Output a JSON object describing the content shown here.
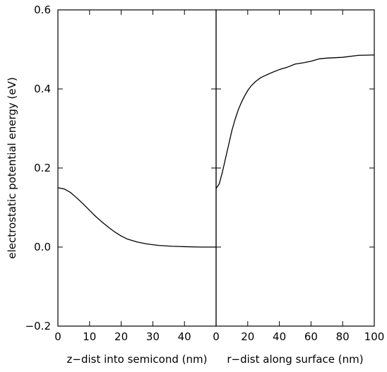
{
  "chart_data": [
    {
      "type": "line",
      "panel": "left",
      "title": "",
      "xlabel": "z−dist into semicond (nm)",
      "ylabel": "electrostatic potential energy (eV)",
      "xlim": [
        0,
        50
      ],
      "ylim": [
        -0.2,
        0.6
      ],
      "xticks": [
        "0",
        "10",
        "20",
        "30",
        "40"
      ],
      "yticks": [
        "−0.2",
        "0.0",
        "0.2",
        "0.4",
        "0.6"
      ],
      "ytick_values": [
        -0.2,
        0.0,
        0.2,
        0.4,
        0.6
      ],
      "xtick_values": [
        0,
        10,
        20,
        30,
        40
      ],
      "grid": false,
      "series": [
        {
          "x": [
            0,
            2,
            4,
            6,
            8,
            10,
            12,
            14,
            16,
            18,
            20,
            22,
            25,
            28,
            32,
            36,
            40,
            45,
            50
          ],
          "y": [
            0.15,
            0.147,
            0.138,
            0.124,
            0.109,
            0.093,
            0.077,
            0.063,
            0.05,
            0.038,
            0.028,
            0.02,
            0.013,
            0.008,
            0.004,
            0.002,
            0.001,
            0.0,
            0.0
          ]
        }
      ]
    },
    {
      "type": "line",
      "panel": "right",
      "title": "",
      "xlabel": "r−dist along surface (nm)",
      "xlim": [
        0,
        100
      ],
      "ylim": [
        -0.2,
        0.6
      ],
      "xticks": [
        "0",
        "20",
        "40",
        "60",
        "80",
        "100"
      ],
      "xtick_values": [
        0,
        20,
        40,
        60,
        80,
        100
      ],
      "grid": false,
      "series": [
        {
          "x": [
            0,
            2,
            4,
            6,
            8,
            10,
            12,
            14,
            16,
            18,
            20,
            22,
            25,
            28,
            30,
            35,
            40,
            45,
            50,
            55,
            60,
            65,
            70,
            80,
            90,
            100
          ],
          "y": [
            0.148,
            0.16,
            0.19,
            0.225,
            0.26,
            0.295,
            0.323,
            0.347,
            0.366,
            0.382,
            0.396,
            0.407,
            0.419,
            0.428,
            0.432,
            0.441,
            0.449,
            0.455,
            0.463,
            0.466,
            0.47,
            0.476,
            0.478,
            0.48,
            0.485,
            0.486
          ]
        }
      ]
    }
  ]
}
